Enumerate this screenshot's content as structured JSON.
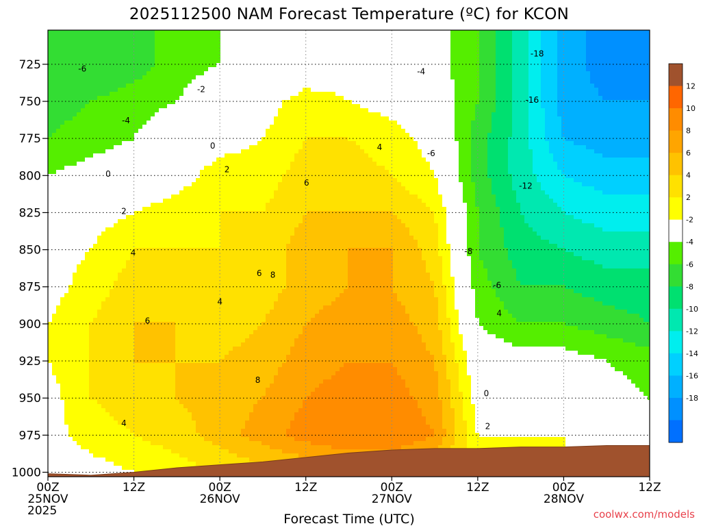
{
  "chart_data": {
    "type": "heatmap",
    "title": "2025112500 NAM Forecast Temperature (ºC) for KCON",
    "xlabel": "Forecast Time (UTC)",
    "ylabel": "",
    "x_ticks": [
      {
        "hour": 0,
        "labels": [
          "00Z",
          "25NOV",
          "2025"
        ]
      },
      {
        "hour": 12,
        "labels": [
          "12Z"
        ]
      },
      {
        "hour": 24,
        "labels": [
          "00Z",
          "26NOV"
        ]
      },
      {
        "hour": 36,
        "labels": [
          "12Z"
        ]
      },
      {
        "hour": 48,
        "labels": [
          "00Z",
          "27NOV"
        ]
      },
      {
        "hour": 60,
        "labels": [
          "12Z"
        ]
      },
      {
        "hour": 72,
        "labels": [
          "00Z",
          "28NOV"
        ]
      },
      {
        "hour": 84,
        "labels": [
          "12Z"
        ]
      }
    ],
    "xlim": [
      0,
      84
    ],
    "y_ticks": [
      725,
      750,
      775,
      800,
      825,
      850,
      875,
      900,
      925,
      950,
      975,
      1000
    ],
    "ylim": [
      1003,
      702
    ],
    "grid": true,
    "colorbar": {
      "levels": [
        12,
        10,
        8,
        6,
        4,
        2,
        -2,
        -4,
        -6,
        -8,
        -10,
        -12,
        -14,
        -16,
        -18
      ],
      "colors": [
        "#a0522d",
        "#ff6600",
        "#ff8c00",
        "#ffa500",
        "#ffc200",
        "#ffe100",
        "#ffff00",
        "#ffffff",
        "#55ee00",
        "#33dd33",
        "#00e070",
        "#00e8b0",
        "#00eeee",
        "#00d0ff",
        "#00b0ff",
        "#0090ff",
        "#0070ff"
      ]
    },
    "temperature_field": {
      "hours": [
        0,
        6,
        12,
        18,
        24,
        30,
        36,
        42,
        48,
        54,
        60,
        66,
        72,
        78,
        84
      ],
      "levels": [
        725,
        750,
        775,
        800,
        825,
        850,
        875,
        900,
        925,
        950,
        975,
        1000
      ],
      "values": [
        [
          -6,
          -6,
          -5,
          -3,
          -2,
          -1,
          0,
          1,
          0,
          -1,
          -4,
          -9,
          -15,
          -17,
          -18
        ],
        [
          -5,
          -4,
          -3,
          -2,
          0,
          1,
          3,
          2,
          1,
          0,
          -4,
          -9,
          -15,
          -16,
          -16
        ],
        [
          -4,
          -3,
          -2,
          0,
          1,
          2,
          4,
          4,
          3,
          1,
          -5,
          -9,
          -14,
          -15,
          -15
        ],
        [
          -2,
          -1,
          0,
          1,
          3,
          3,
          5,
          5,
          4,
          2,
          -5,
          -9,
          -12,
          -13,
          -13
        ],
        [
          0,
          1,
          2,
          3,
          4,
          4,
          6,
          6,
          6,
          4,
          -4,
          -8,
          -10,
          -11,
          -11
        ],
        [
          1,
          2,
          4,
          4,
          4,
          5,
          7,
          8,
          8,
          5,
          -4,
          -7,
          -8,
          -9,
          -9
        ],
        [
          1,
          3,
          5,
          5,
          4,
          5,
          7,
          8,
          8,
          6,
          -3,
          -6,
          -6,
          -7,
          -7
        ],
        [
          2,
          4,
          6,
          6,
          5,
          6,
          8,
          9,
          9,
          7,
          -2,
          -4,
          -4,
          -5,
          -6
        ],
        [
          2,
          4,
          6,
          6,
          6,
          7,
          9,
          10,
          10,
          8,
          0,
          -1,
          -1,
          -2,
          -3
        ],
        [
          1,
          4,
          5,
          6,
          7,
          8,
          10,
          11,
          11,
          9,
          1,
          0,
          0,
          -1,
          -2
        ],
        [
          1,
          3,
          4,
          5,
          7,
          9,
          11,
          12,
          12,
          10,
          2,
          2,
          2,
          1,
          0
        ],
        [
          0,
          1,
          2,
          3,
          4,
          5,
          6,
          7,
          7,
          6,
          2,
          2,
          2,
          1,
          1
        ]
      ]
    },
    "contours_negative": [
      -18,
      -16,
      -12,
      -8,
      -6,
      -4,
      -2
    ],
    "contours_positive": [
      2,
      4,
      6,
      8
    ],
    "freezing_contour": 0,
    "surface_pressure": {
      "hours": [
        0,
        6,
        12,
        18,
        24,
        30,
        36,
        42,
        48,
        54,
        60,
        66,
        72,
        78,
        84
      ],
      "values": [
        1001,
        1002,
        1000,
        997,
        995,
        993,
        990,
        987,
        985,
        984,
        984,
        983,
        983,
        982,
        982
      ]
    },
    "contour_labels": [
      {
        "text": "-6",
        "hour": 4.8,
        "p": 728
      },
      {
        "text": "-2",
        "hour": 21.4,
        "p": 742
      },
      {
        "text": "-4",
        "hour": 10.9,
        "p": 763
      },
      {
        "text": "0",
        "hour": 23.0,
        "p": 780
      },
      {
        "text": "0",
        "hour": 8.4,
        "p": 799
      },
      {
        "text": "2",
        "hour": 25.0,
        "p": 796
      },
      {
        "text": "2",
        "hour": 10.6,
        "p": 824
      },
      {
        "text": "4",
        "hour": 11.9,
        "p": 852
      },
      {
        "text": "4",
        "hour": 46.3,
        "p": 781
      },
      {
        "text": "6",
        "hour": 36.1,
        "p": 805
      },
      {
        "text": "6",
        "hour": 29.5,
        "p": 866
      },
      {
        "text": "4",
        "hour": 24.0,
        "p": 885
      },
      {
        "text": "6",
        "hour": 13.9,
        "p": 898
      },
      {
        "text": "8",
        "hour": 31.4,
        "p": 867
      },
      {
        "text": "8",
        "hour": 29.3,
        "p": 938
      },
      {
        "text": "4",
        "hour": 10.6,
        "p": 967
      },
      {
        "text": "-4",
        "hour": 52.1,
        "p": 730
      },
      {
        "text": "-18",
        "hour": 68.3,
        "p": 718
      },
      {
        "text": "-16",
        "hour": 67.6,
        "p": 749
      },
      {
        "text": "-6",
        "hour": 53.5,
        "p": 785
      },
      {
        "text": "-12",
        "hour": 66.7,
        "p": 807
      },
      {
        "text": "-8",
        "hour": 58.7,
        "p": 851
      },
      {
        "text": "-6",
        "hour": 62.7,
        "p": 874
      },
      {
        "text": "4",
        "hour": 63.0,
        "p": 893
      },
      {
        "text": "0",
        "hour": 61.2,
        "p": 947
      },
      {
        "text": "2",
        "hour": 61.4,
        "p": 969
      }
    ],
    "credit": "coolwx.com/models"
  }
}
